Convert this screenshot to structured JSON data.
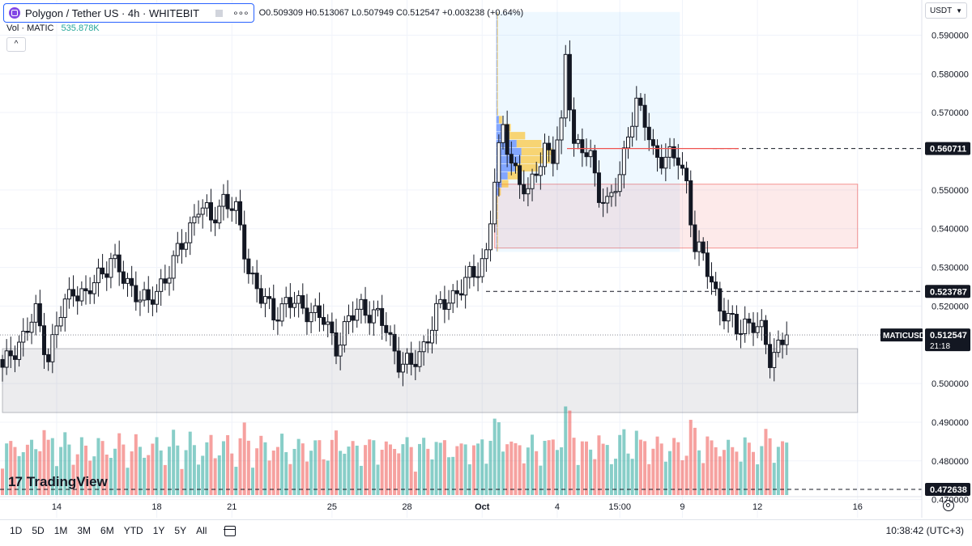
{
  "header": {
    "symbol_title": "Polygon / Tether US · 4h · WHITEBIT",
    "ohlc": "O0.509309 H0.513067 L0.507949 C0.512547 +0.003238 (+0.64%)",
    "vol_label": "Vol · MATIC",
    "vol_value": "535.878K",
    "collapse_glyph": "^",
    "currency": "USDT",
    "dots_glyph": "∘∘∘"
  },
  "colors": {
    "up": "#26a69a",
    "down": "#ef5350",
    "accent": "#2962ff",
    "grid": "#f0f3fa"
  },
  "icons": [
    "polygon-logo-icon",
    "eye-toggle-icon",
    "more-dots-icon",
    "chevron-up-icon",
    "chevron-down-icon",
    "calendar-icon",
    "gear-icon",
    "tradingview-logo-icon"
  ],
  "price_axis": {
    "ticks": [
      "0.590000",
      "0.580000",
      "0.570000",
      "0.550000",
      "0.540000",
      "0.530000",
      "0.520000",
      "0.500000",
      "0.490000",
      "0.480000",
      "0.470000"
    ],
    "tick_values": [
      0.59,
      0.58,
      0.57,
      0.55,
      0.54,
      0.53,
      0.52,
      0.5,
      0.49,
      0.48,
      0.47
    ],
    "labels": [
      {
        "text": "0.560711",
        "value": 0.560711,
        "style": "black"
      },
      {
        "text": "0.523787",
        "value": 0.523787,
        "style": "black"
      },
      {
        "text": "0.472638",
        "value": 0.472638,
        "style": "black"
      },
      {
        "text": "0.512547",
        "value": 0.512547,
        "style": "black",
        "title": "MATICUSDT",
        "countdown": "21:18"
      }
    ]
  },
  "time_axis": {
    "ticks": [
      {
        "label": "14",
        "index": 13
      },
      {
        "label": "18",
        "index": 37
      },
      {
        "label": "21",
        "index": 55
      },
      {
        "label": "25",
        "index": 79
      },
      {
        "label": "28",
        "index": 97
      },
      {
        "label": "Oct",
        "index": 115
      },
      {
        "label": "4",
        "index": 133
      },
      {
        "label": "15:00",
        "index": 148
      },
      {
        "label": "9",
        "index": 163
      },
      {
        "label": "12",
        "index": 181
      },
      {
        "label": "16",
        "index": 205
      }
    ]
  },
  "toolbar": {
    "timeframes": [
      "1D",
      "5D",
      "1M",
      "3M",
      "6M",
      "YTD",
      "1Y",
      "5Y",
      "All"
    ],
    "clock": "10:38:42 (UTC+3)"
  },
  "brand": {
    "logo_mark": "17",
    "name": "TradingView"
  },
  "chart_data": {
    "type": "candlestick",
    "ylim": [
      0.467,
      0.597
    ],
    "anchors": [
      [
        0,
        0.503
      ],
      [
        2,
        0.508
      ],
      [
        5,
        0.512
      ],
      [
        8,
        0.518
      ],
      [
        11,
        0.507
      ],
      [
        14,
        0.518
      ],
      [
        17,
        0.525
      ],
      [
        20,
        0.522
      ],
      [
        23,
        0.528
      ],
      [
        26,
        0.532
      ],
      [
        29,
        0.527
      ],
      [
        32,
        0.524
      ],
      [
        35,
        0.52
      ],
      [
        38,
        0.526
      ],
      [
        41,
        0.531
      ],
      [
        44,
        0.538
      ],
      [
        47,
        0.546
      ],
      [
        50,
        0.542
      ],
      [
        53,
        0.548
      ],
      [
        56,
        0.544
      ],
      [
        59,
        0.53
      ],
      [
        62,
        0.522
      ],
      [
        65,
        0.518
      ],
      [
        68,
        0.521
      ],
      [
        71,
        0.52
      ],
      [
        74,
        0.519
      ],
      [
        77,
        0.516
      ],
      [
        80,
        0.51
      ],
      [
        83,
        0.516
      ],
      [
        86,
        0.52
      ],
      [
        89,
        0.518
      ],
      [
        92,
        0.514
      ],
      [
        95,
        0.506
      ],
      [
        98,
        0.504
      ],
      [
        101,
        0.51
      ],
      [
        104,
        0.518
      ],
      [
        107,
        0.522
      ],
      [
        110,
        0.525
      ],
      [
        113,
        0.528
      ],
      [
        116,
        0.534
      ],
      [
        118,
        0.552
      ],
      [
        120,
        0.566
      ],
      [
        122,
        0.558
      ],
      [
        124,
        0.552
      ],
      [
        126,
        0.548
      ],
      [
        128,
        0.556
      ],
      [
        130,
        0.561
      ],
      [
        132,
        0.558
      ],
      [
        134,
        0.566
      ],
      [
        135,
        0.586
      ],
      [
        137,
        0.562
      ],
      [
        139,
        0.56
      ],
      [
        141,
        0.558
      ],
      [
        143,
        0.55
      ],
      [
        145,
        0.546
      ],
      [
        148,
        0.553
      ],
      [
        150,
        0.566
      ],
      [
        152,
        0.572
      ],
      [
        154,
        0.567
      ],
      [
        156,
        0.56
      ],
      [
        159,
        0.558
      ],
      [
        162,
        0.558
      ],
      [
        164,
        0.552
      ],
      [
        166,
        0.535
      ],
      [
        168,
        0.532
      ],
      [
        170,
        0.527
      ],
      [
        172,
        0.52
      ],
      [
        174,
        0.516
      ],
      [
        176,
        0.514
      ],
      [
        178,
        0.516
      ],
      [
        180,
        0.515
      ],
      [
        182,
        0.513
      ],
      [
        184,
        0.507
      ],
      [
        186,
        0.51
      ],
      [
        188,
        0.512
      ]
    ],
    "volume_max": 450000,
    "horizontal_levels": [
      0.560711,
      0.523787,
      0.472638
    ],
    "zones": [
      {
        "name": "resistance-zone",
        "from_index": 118,
        "to_index": 205,
        "top": 0.5515,
        "bottom": 0.535,
        "color": "#ef5350"
      },
      {
        "name": "support-zone",
        "from_index": 0,
        "to_index": 205,
        "top": 0.509,
        "bottom": 0.4925,
        "color": "#787b86"
      }
    ],
    "volume_profile_range": {
      "from_index": 118,
      "to_index": 162,
      "top": 0.596,
      "bottom": 0.534
    }
  }
}
